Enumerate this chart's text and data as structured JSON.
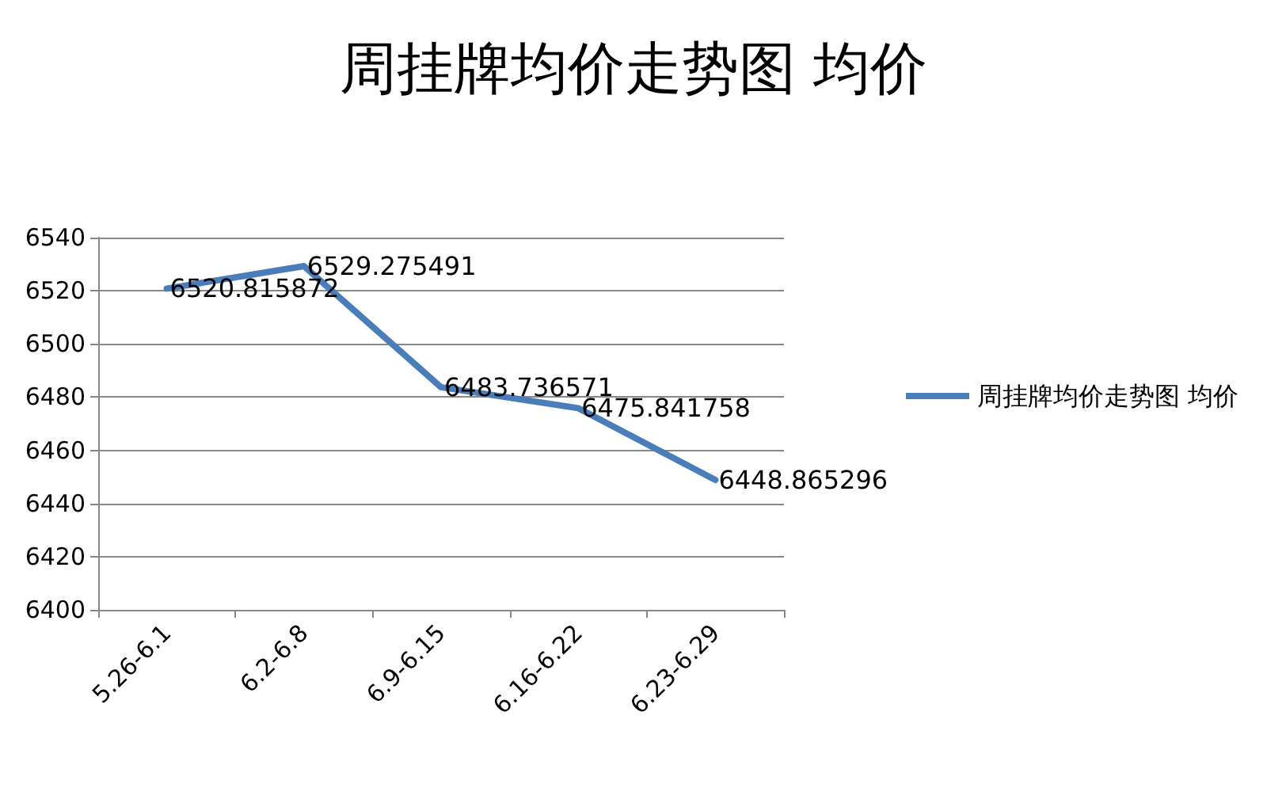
{
  "chart_data": {
    "type": "line",
    "title": "周挂牌均价走势图 均价",
    "categories": [
      "5.26-6.1",
      "6.2-6.8",
      "6.9-6.15",
      "6.16-6.22",
      "6.23-6.29"
    ],
    "series": [
      {
        "name": "周挂牌均价走势图 均价",
        "color": "#4a7ebb",
        "values": [
          6520.815872,
          6529.275491,
          6483.736571,
          6475.841758,
          6448.865296
        ]
      }
    ],
    "ylim": [
      6400,
      6540
    ],
    "yticks": [
      6400,
      6420,
      6440,
      6460,
      6480,
      6500,
      6520,
      6540
    ],
    "grid": "y",
    "legend": "right",
    "marker": "none",
    "line_style": "solid",
    "data_labels": true
  }
}
